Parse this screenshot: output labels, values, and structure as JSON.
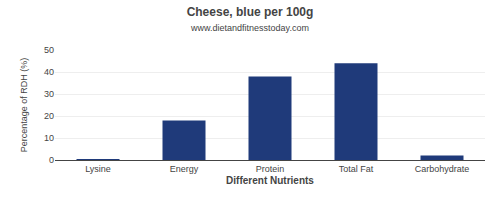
{
  "chart_data": {
    "type": "bar",
    "title": "Cheese, blue per 100g",
    "subtitle": "www.dietandfitnesstoday.com",
    "xlabel": "Different Nutrients",
    "ylabel": "Percentage of RDH (%)",
    "categories": [
      "Lysine",
      "Energy",
      "Protein",
      "Total Fat",
      "Carbohydrate"
    ],
    "values": [
      0.3,
      18,
      38,
      44,
      2
    ],
    "color": "#1f3a7a",
    "ylim": [
      0,
      50
    ],
    "yticks": [
      0,
      10,
      20,
      30,
      40,
      50
    ],
    "grid": true
  }
}
